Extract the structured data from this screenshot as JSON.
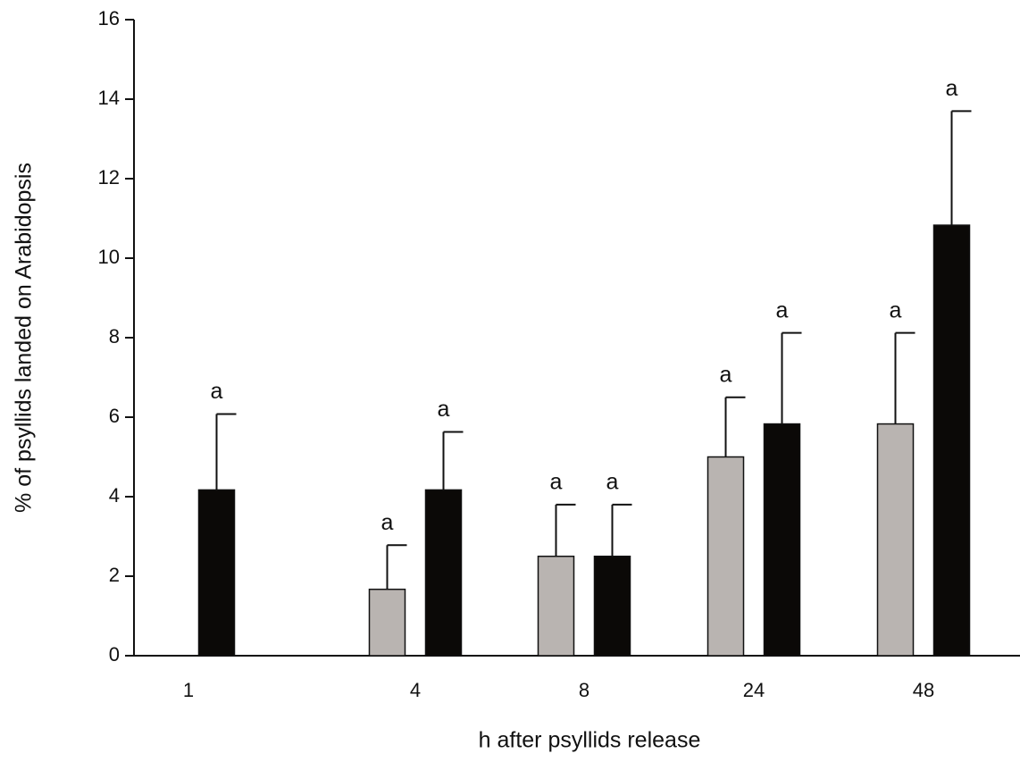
{
  "chart_data": {
    "type": "bar",
    "xlabel": "h after psyllids release",
    "ylabel": "% of psyllids landed on Arabidopsis",
    "categories": [
      "1",
      "4",
      "8",
      "24",
      "48"
    ],
    "series": [
      {
        "color": "#b9b4b1",
        "values": [
          null,
          1.67,
          2.5,
          5.0,
          5.83
        ],
        "errors": [
          null,
          1.11,
          1.3,
          1.5,
          2.29
        ],
        "letters": [
          null,
          "a",
          "a",
          "a",
          "a"
        ]
      },
      {
        "color": "#0b0907",
        "values": [
          4.17,
          4.17,
          2.5,
          5.83,
          10.83
        ],
        "errors": [
          1.91,
          1.46,
          1.3,
          2.29,
          2.87
        ],
        "letters": [
          "a",
          "a",
          "a",
          "a",
          "a"
        ]
      }
    ],
    "ylim": [
      0,
      16
    ],
    "yticks": [
      0,
      2,
      4,
      6,
      8,
      10,
      12,
      14,
      16
    ],
    "grid": false
  }
}
